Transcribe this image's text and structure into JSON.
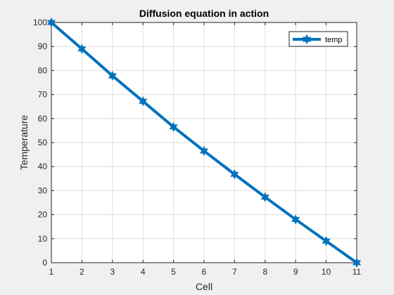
{
  "chart_data": {
    "type": "line",
    "title": "Diffusion equation in action",
    "xlabel": "Cell",
    "ylabel": "Temperature",
    "xlim": [
      1,
      11
    ],
    "ylim": [
      0,
      100
    ],
    "xticks": [
      1,
      2,
      3,
      4,
      5,
      6,
      7,
      8,
      9,
      10,
      11
    ],
    "yticks": [
      0,
      10,
      20,
      30,
      40,
      50,
      60,
      70,
      80,
      90,
      100
    ],
    "grid": true,
    "legend_location": "top-right",
    "series": [
      {
        "name": "temp",
        "color": "#0072bd",
        "marker": "hexagram",
        "x": [
          1,
          2,
          3,
          4,
          5,
          6,
          7,
          8,
          9,
          10,
          11
        ],
        "values": [
          100,
          89,
          77.8,
          67.2,
          56.5,
          46.5,
          36.8,
          27.3,
          18,
          9,
          0
        ]
      }
    ]
  }
}
